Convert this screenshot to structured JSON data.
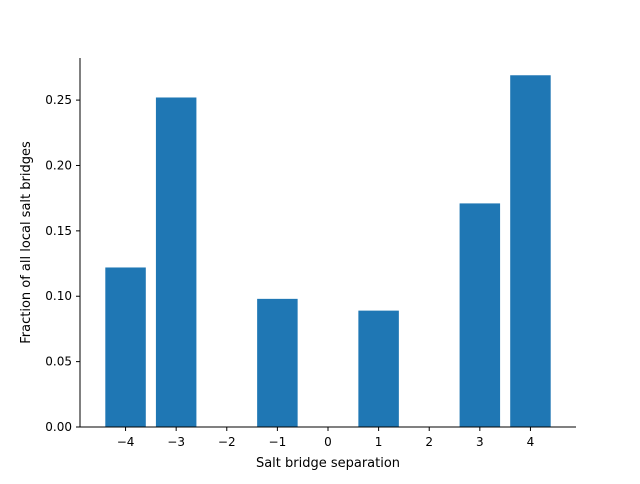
{
  "chart_data": {
    "type": "bar",
    "title": "",
    "xlabel": "Salt bridge separation",
    "ylabel": "Fraction of all local salt bridges",
    "x": [
      -4,
      -3,
      -2,
      -1,
      0,
      1,
      2,
      3,
      4
    ],
    "x_tick_labels": [
      "−4",
      "−3",
      "−2",
      "−1",
      "0",
      "1",
      "2",
      "3",
      "4"
    ],
    "values": [
      0.122,
      0.252,
      0.0,
      0.098,
      0.0,
      0.089,
      0.0,
      0.171,
      0.269
    ],
    "xlim": [
      -4.9,
      4.9
    ],
    "ylim": [
      0,
      0.2822
    ],
    "y_ticks": [
      0.0,
      0.05,
      0.1,
      0.15,
      0.2,
      0.25
    ],
    "y_tick_labels": [
      "0.00",
      "0.05",
      "0.10",
      "0.15",
      "0.20",
      "0.25"
    ],
    "bar_color": "#1f77b4",
    "grid": false,
    "legend": "none",
    "spines_visible": [
      "left",
      "bottom"
    ]
  }
}
